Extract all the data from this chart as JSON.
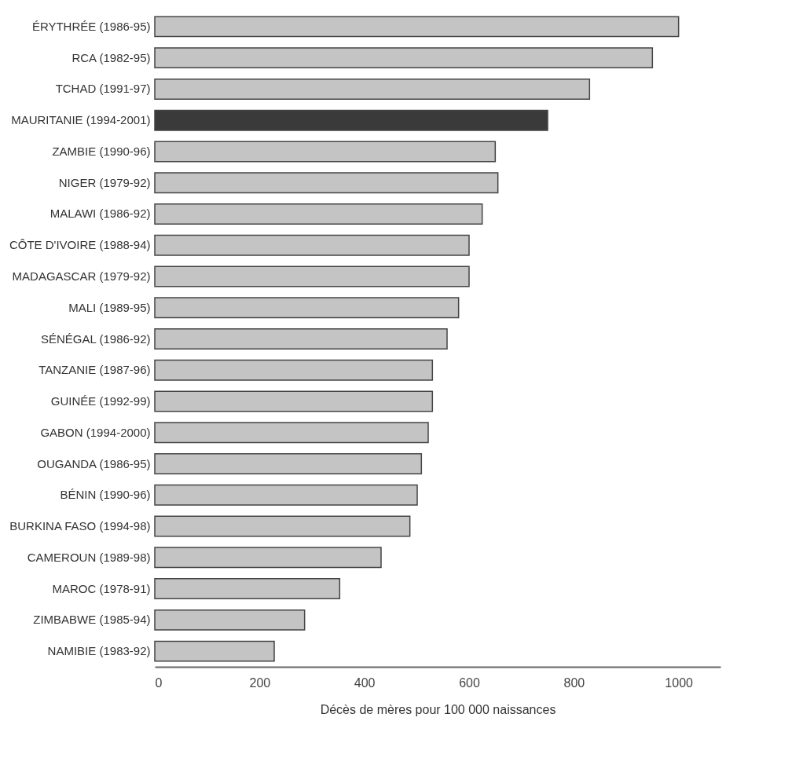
{
  "chart_data": {
    "type": "bar",
    "orientation": "horizontal",
    "xlabel": "Décès de mères pour 100 000 naissances",
    "categories": [
      "ÉRYTHRÉE (1986-95)",
      "RCA (1982-95)",
      "TCHAD (1991-97)",
      "MAURITANIE (1994-2001)",
      "ZAMBIE (1990-96)",
      "NIGER (1979-92)",
      "MALAWI (1986-92)",
      "CÔTE D'IVOIRE (1988-94)",
      "MADAGASCAR (1979-92)",
      "MALI (1989-95)",
      "SÉNÉGAL (1986-92)",
      "TANZANIE (1987-96)",
      "GUINÉE (1992-99)",
      "GABON (1994-2000)",
      "OUGANDA (1986-95)",
      "BÉNIN (1990-96)",
      "BURKINA FASO (1994-98)",
      "CAMEROUN (1989-98)",
      "MAROC (1978-91)",
      "ZIMBABWE (1985-94)",
      "NAMIBIE (1983-92)"
    ],
    "values": [
      1000,
      950,
      830,
      750,
      650,
      655,
      625,
      600,
      600,
      580,
      558,
      530,
      530,
      522,
      509,
      501,
      487,
      432,
      353,
      286,
      228
    ],
    "colors": [
      "#c4c4c4",
      "#c4c4c4",
      "#c4c4c4",
      "#3a3a3a",
      "#c4c4c4",
      "#c4c4c4",
      "#c4c4c4",
      "#c4c4c4",
      "#c4c4c4",
      "#c4c4c4",
      "#c4c4c4",
      "#c4c4c4",
      "#c4c4c4",
      "#c4c4c4",
      "#c4c4c4",
      "#c4c4c4",
      "#c4c4c4",
      "#c4c4c4",
      "#c4c4c4",
      "#c4c4c4",
      "#c4c4c4"
    ],
    "xlim": [
      0,
      1080
    ],
    "xticks": [
      0,
      200,
      400,
      600,
      800,
      1000
    ],
    "grid": false
  }
}
